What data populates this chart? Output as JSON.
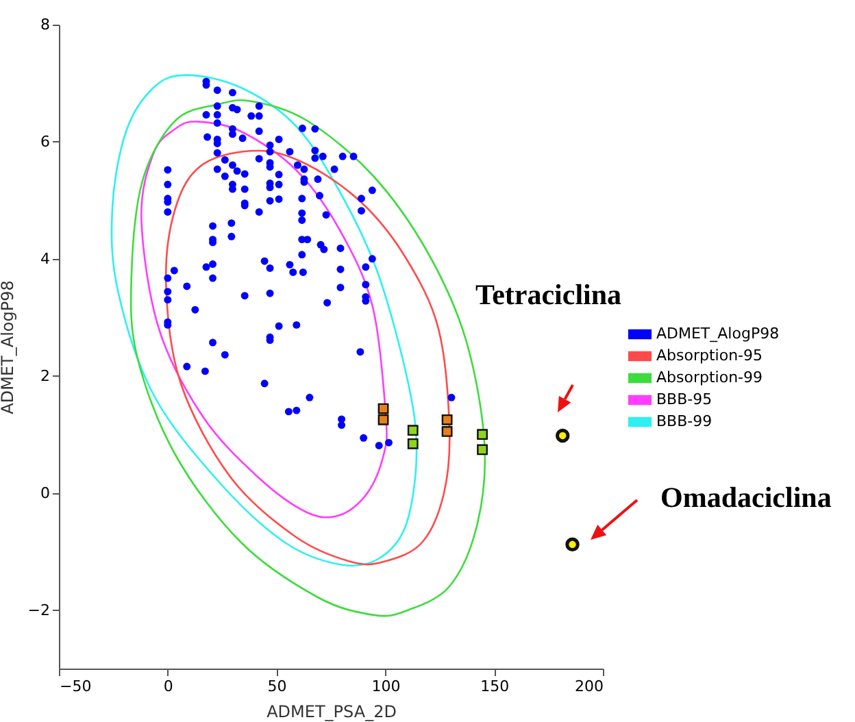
{
  "chart_data": {
    "type": "scatter",
    "xlabel": "ADMET_PSA_2D",
    "ylabel": "ADMET_AlogP98",
    "xlim": [
      -50,
      200
    ],
    "ylim": [
      -3,
      8
    ],
    "xticks": [
      -50,
      0,
      50,
      100,
      150,
      200
    ],
    "yticks": [
      -2,
      0,
      2,
      4,
      6,
      8
    ],
    "legend": "right",
    "marker": "circle",
    "annotations": [
      "Tetraciclina",
      "Omadaciclina"
    ],
    "series": [
      {
        "name": "ADMET_AlogP98",
        "color": "#0000ff",
        "x": [
          17.7,
          17.7,
          22.8,
          29.8,
          17.7,
          22.8,
          22.8,
          22.8,
          29.8,
          31.9,
          38.4,
          42.0,
          42.0,
          18.2,
          22.8,
          22.8,
          22.8,
          26.3,
          29.8,
          29.8,
          34.4,
          42.0,
          47.0,
          47.0,
          51.1,
          61.9,
          67.7,
          22.8,
          26.3,
          29.8,
          31.9,
          29.8,
          29.8,
          35.4,
          35.4,
          42.0,
          47.0,
          47.0,
          47.0,
          47.0,
          51.1,
          51.1,
          56.1,
          59.7,
          62.7,
          62.7,
          62.7,
          67.7,
          67.7,
          71.3,
          69.0,
          76.6,
          80.4,
          85.4,
          69.8,
          72.8,
          61.7,
          61.7,
          61.7,
          0,
          0,
          0,
          0,
          0,
          35.4,
          35.4,
          42.0,
          47.0,
          51.1,
          29.3,
          29.3,
          20.7,
          20.7,
          20.7,
          17.7,
          20.7,
          20.7,
          3.0,
          0,
          0,
          0,
          8.8,
          12.6,
          0,
          0,
          35.4,
          44.5,
          47.0,
          47.0,
          56.1,
          57.6,
          61.7,
          64.2,
          61.7,
          62.2,
          70.3,
          71.8,
          73.3,
          79.4,
          79.4,
          79.4,
          89.0,
          89.0,
          94.0,
          94.0,
          91.0,
          91.0,
          91.0,
          91.0,
          88.5,
          44.5,
          47.0,
          47.0,
          51.1,
          59.2,
          20.7,
          26.3,
          8.8,
          17.2,
          55.6,
          59.2,
          65.2,
          79.9,
          79.9,
          90.0,
          97.1,
          101.6,
          130.4
        ],
        "values": [
          7.03,
          6.97,
          6.88,
          6.84,
          6.46,
          6.61,
          6.46,
          6.32,
          6.58,
          6.55,
          6.44,
          6.44,
          6.61,
          6.08,
          6.04,
          5.97,
          5.81,
          5.69,
          6.22,
          6.13,
          6.06,
          6.18,
          5.94,
          5.83,
          6.04,
          6.23,
          6.22,
          5.53,
          5.41,
          5.6,
          5.5,
          5.27,
          5.19,
          5.45,
          5.19,
          5.71,
          5.64,
          5.57,
          5.29,
          5.22,
          5.44,
          5.27,
          5.83,
          5.6,
          5.53,
          5.36,
          5.31,
          5.85,
          5.72,
          5.75,
          5.36,
          5.53,
          5.75,
          5.75,
          5.08,
          4.75,
          5.03,
          4.78,
          4.66,
          5.52,
          5.27,
          5.03,
          4.97,
          4.8,
          4.95,
          4.91,
          4.8,
          4.99,
          5.02,
          4.61,
          4.38,
          4.56,
          4.33,
          4.28,
          3.86,
          3.91,
          3.67,
          3.8,
          3.67,
          3.44,
          3.3,
          3.53,
          3.13,
          2.92,
          2.87,
          3.37,
          3.96,
          3.84,
          3.41,
          3.9,
          3.77,
          4.33,
          4.33,
          4.07,
          3.77,
          4.24,
          4.16,
          3.25,
          4.18,
          3.82,
          3.51,
          5.03,
          4.82,
          5.17,
          4.0,
          3.86,
          3.56,
          3.35,
          3.28,
          2.41,
          1.87,
          2.66,
          2.61,
          2.85,
          2.87,
          2.57,
          2.36,
          2.16,
          2.08,
          1.39,
          1.41,
          1.63,
          1.26,
          1.16,
          0.94,
          0.81,
          0.86,
          1.63
        ]
      },
      {
        "name": "Absorption-95",
        "type": "line",
        "color": "#ff4a4a"
      },
      {
        "name": "Absorption-99",
        "type": "line",
        "color": "#3ddc3d"
      },
      {
        "name": "BBB-95",
        "type": "line",
        "color": "#ff3cff"
      },
      {
        "name": "BBB-99",
        "type": "line",
        "color": "#2ef0f0"
      },
      {
        "type": "scatter",
        "marker": "square",
        "color": "#e8801a",
        "x": [
          99.1,
          99.1,
          128.4,
          128.4
        ],
        "values": [
          1.44,
          1.25,
          1.25,
          1.05
        ]
      },
      {
        "type": "scatter",
        "marker": "square",
        "color": "#8fd41e",
        "x": [
          112.7,
          112.7,
          144.6,
          144.6
        ],
        "values": [
          1.07,
          0.84,
          1.0,
          0.74
        ]
      },
      {
        "type": "scatter",
        "marker": "circle",
        "color": "#ffee00",
        "x": [
          181.5,
          186
        ],
        "values": [
          0.98,
          -0.88
        ]
      }
    ]
  }
}
